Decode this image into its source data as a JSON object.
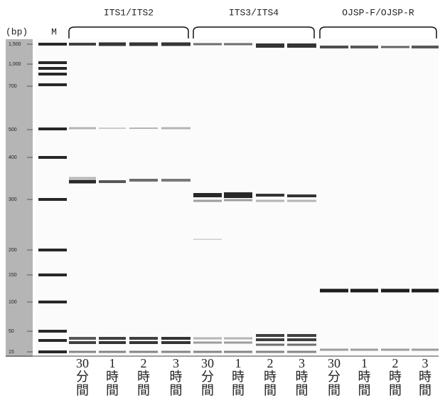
{
  "unit_label": "(bp)",
  "marker_label": "M",
  "ladder": [
    "1,500",
    "1,000",
    "700",
    "500",
    "400",
    "300",
    "200",
    "150",
    "100",
    "50",
    "15"
  ],
  "groups": [
    {
      "label": "ITS1/ITS2",
      "lanes": [
        [
          "30",
          "分",
          "間"
        ],
        [
          "1",
          "時",
          "間"
        ],
        [
          "2",
          "時",
          "間"
        ],
        [
          "3",
          "時",
          "間"
        ]
      ]
    },
    {
      "label": "ITS3/ITS4",
      "lanes": [
        [
          "30",
          "分",
          "間"
        ],
        [
          "1",
          "時",
          "間"
        ],
        [
          "2",
          "時",
          "間"
        ],
        [
          "3",
          "時",
          "間"
        ]
      ]
    },
    {
      "label": "OJSP-F/OJSP-R",
      "lanes": [
        [
          "30",
          "分",
          "間"
        ],
        [
          "1",
          "時",
          "間"
        ],
        [
          "2",
          "時",
          "間"
        ],
        [
          "3",
          "時",
          "間"
        ]
      ]
    }
  ]
}
